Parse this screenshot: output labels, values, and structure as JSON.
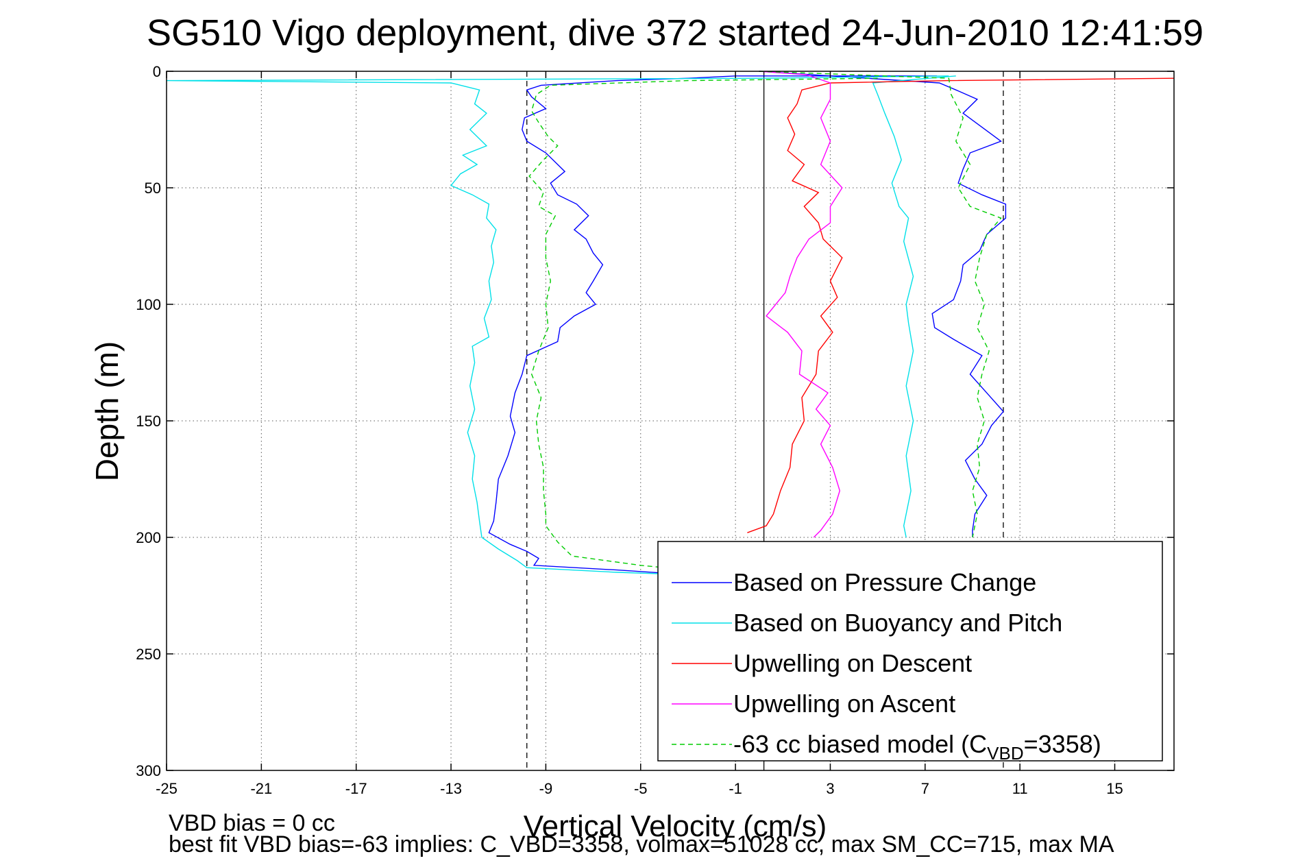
{
  "chart_data": {
    "type": "line",
    "title": "SG510 Vigo deployment, dive 372 started 24-Jun-2010 12:41:59",
    "xlabel": "Vertical Velocity (cm/s)",
    "ylabel": "Depth (m)",
    "xlim": [
      -25,
      17.5
    ],
    "ylim": [
      0,
      300
    ],
    "y_reversed": true,
    "grid": true,
    "x_ticks": [
      -25,
      -21,
      -17,
      -13,
      -9,
      -5,
      -1,
      3,
      7,
      11,
      15
    ],
    "y_ticks": [
      0,
      50,
      100,
      150,
      200,
      250,
      300
    ],
    "x_tick_labels": [
      "-25",
      "-21",
      "-17",
      "-13",
      "-9",
      "-5",
      "-1",
      "3",
      "7",
      "11",
      "15"
    ],
    "y_tick_labels": [
      "0",
      "50",
      "100",
      "150",
      "200",
      "250",
      "300"
    ],
    "legend_position": "bottom-right",
    "reference_lines": {
      "solid_x": 0.2,
      "dashed_x": [
        -9.8,
        10.3
      ]
    },
    "series": [
      {
        "name": "Based on Pressure Change",
        "color": "#0000ff",
        "style": "solid",
        "points": [
          [
            7.5,
            2
          ],
          [
            3.5,
            2
          ],
          [
            -1,
            2
          ],
          [
            -3,
            3
          ],
          [
            -6,
            4
          ],
          [
            -9.2,
            6
          ],
          [
            -9.8,
            8
          ],
          [
            -9.6,
            11
          ],
          [
            -9,
            16
          ],
          [
            -9.9,
            20
          ],
          [
            -10,
            25
          ],
          [
            -9.8,
            30
          ],
          [
            -9,
            35
          ],
          [
            -8.5,
            40
          ],
          [
            -8.2,
            43
          ],
          [
            -8.8,
            48
          ],
          [
            -8.5,
            53
          ],
          [
            -7.7,
            57
          ],
          [
            -7.2,
            62
          ],
          [
            -7.8,
            68
          ],
          [
            -7.3,
            72
          ],
          [
            -7,
            78
          ],
          [
            -6.6,
            83
          ],
          [
            -7,
            90
          ],
          [
            -7.3,
            95
          ],
          [
            -6.9,
            100
          ],
          [
            -7.8,
            105
          ],
          [
            -8.4,
            110
          ],
          [
            -8.5,
            116
          ],
          [
            -9.8,
            122
          ],
          [
            -10,
            130
          ],
          [
            -10.3,
            138
          ],
          [
            -10.5,
            148
          ],
          [
            -10.3,
            155
          ],
          [
            -10.6,
            165
          ],
          [
            -11,
            175
          ],
          [
            -11.1,
            185
          ],
          [
            -11.2,
            193
          ],
          [
            -11.4,
            198
          ],
          [
            -10.5,
            203
          ],
          [
            -9.8,
            206
          ],
          [
            -9.3,
            209
          ],
          [
            -9.5,
            212
          ],
          [
            -6,
            214
          ],
          [
            -3,
            216
          ],
          [
            -1.5,
            217
          ],
          [
            0,
            217
          ]
        ],
        "points_right": [
          [
            0,
            0
          ],
          [
            7.6,
            5
          ],
          [
            8.3,
            8
          ],
          [
            9.2,
            12
          ],
          [
            8.6,
            18
          ],
          [
            9.4,
            24
          ],
          [
            10.2,
            30
          ],
          [
            8.9,
            35
          ],
          [
            8.6,
            42
          ],
          [
            8.4,
            48
          ],
          [
            9.4,
            53
          ],
          [
            10.4,
            57
          ],
          [
            10.4,
            63
          ],
          [
            9.6,
            70
          ],
          [
            9.3,
            77
          ],
          [
            8.6,
            83
          ],
          [
            8.5,
            90
          ],
          [
            8.2,
            98
          ],
          [
            7.3,
            104
          ],
          [
            7.4,
            110
          ],
          [
            8.2,
            115
          ],
          [
            9.4,
            122
          ],
          [
            8.9,
            130
          ],
          [
            9.6,
            138
          ],
          [
            10.3,
            146
          ],
          [
            9.8,
            152
          ],
          [
            9.4,
            160
          ],
          [
            8.7,
            167
          ],
          [
            9.1,
            175
          ],
          [
            9.6,
            182
          ],
          [
            9.1,
            190
          ],
          [
            9,
            197
          ],
          [
            9,
            200
          ]
        ]
      },
      {
        "name": "Based on Buoyancy and Pitch",
        "color": "#00e0e8",
        "style": "solid",
        "points": [
          [
            8,
            2
          ],
          [
            0,
            3
          ],
          [
            -25,
            4
          ],
          [
            -13,
            5
          ],
          [
            -11.8,
            8
          ],
          [
            -12,
            14
          ],
          [
            -11.5,
            18
          ],
          [
            -12.2,
            25
          ],
          [
            -11.5,
            32
          ],
          [
            -12.5,
            36
          ],
          [
            -11.9,
            40
          ],
          [
            -12.6,
            44
          ],
          [
            -13,
            49
          ],
          [
            -12.1,
            53
          ],
          [
            -11.4,
            57
          ],
          [
            -11.5,
            63
          ],
          [
            -11.1,
            68
          ],
          [
            -11.3,
            75
          ],
          [
            -11.2,
            82
          ],
          [
            -11.4,
            90
          ],
          [
            -11.3,
            98
          ],
          [
            -11.6,
            106
          ],
          [
            -11.4,
            114
          ],
          [
            -12.1,
            118
          ],
          [
            -12,
            125
          ],
          [
            -12.2,
            135
          ],
          [
            -12,
            145
          ],
          [
            -12.3,
            155
          ],
          [
            -12,
            165
          ],
          [
            -12.1,
            175
          ],
          [
            -11.9,
            185
          ],
          [
            -11.8,
            193
          ],
          [
            -11.7,
            200
          ],
          [
            -11,
            205
          ],
          [
            -10.2,
            210
          ],
          [
            -9.8,
            213
          ],
          [
            -6,
            215
          ],
          [
            -3,
            216
          ],
          [
            0,
            217
          ]
        ],
        "points_right": [
          [
            8.3,
            2
          ],
          [
            4.8,
            5
          ],
          [
            5,
            10
          ],
          [
            5.3,
            18
          ],
          [
            5.7,
            28
          ],
          [
            6,
            38
          ],
          [
            5.6,
            48
          ],
          [
            5.9,
            58
          ],
          [
            6.3,
            63
          ],
          [
            6.1,
            73
          ],
          [
            6.5,
            88
          ],
          [
            6.2,
            100
          ],
          [
            6.3,
            108
          ],
          [
            6.5,
            120
          ],
          [
            6.2,
            135
          ],
          [
            6.5,
            150
          ],
          [
            6.2,
            165
          ],
          [
            6.4,
            180
          ],
          [
            6.1,
            195
          ],
          [
            6.2,
            200
          ]
        ]
      },
      {
        "name": "Upwelling on Descent",
        "color": "#ff0000",
        "style": "solid",
        "points": [
          [
            17.5,
            3
          ],
          [
            8,
            4
          ],
          [
            3,
            5
          ],
          [
            1.8,
            8
          ],
          [
            1.6,
            14
          ],
          [
            1.2,
            20
          ],
          [
            1.5,
            27
          ],
          [
            1.2,
            34
          ],
          [
            1.9,
            40
          ],
          [
            1.4,
            47
          ],
          [
            2.5,
            52
          ],
          [
            1.9,
            58
          ],
          [
            2.5,
            65
          ],
          [
            2.7,
            72
          ],
          [
            3.5,
            80
          ],
          [
            3,
            90
          ],
          [
            3.3,
            97
          ],
          [
            2.6,
            105
          ],
          [
            3.1,
            112
          ],
          [
            2.5,
            120
          ],
          [
            2.4,
            130
          ],
          [
            1.8,
            140
          ],
          [
            1.9,
            150
          ],
          [
            1.4,
            160
          ],
          [
            1.3,
            170
          ],
          [
            0.9,
            180
          ],
          [
            0.6,
            190
          ],
          [
            0.3,
            195
          ],
          [
            -0.5,
            198
          ]
        ]
      },
      {
        "name": "Upwelling on Ascent",
        "color": "#ff00ff",
        "style": "solid",
        "points": [
          [
            0,
            0
          ],
          [
            2,
            1.5
          ],
          [
            3,
            5
          ],
          [
            3,
            12
          ],
          [
            2.6,
            20
          ],
          [
            3,
            30
          ],
          [
            2.6,
            40
          ],
          [
            3.5,
            50
          ],
          [
            3,
            58
          ],
          [
            3,
            65
          ],
          [
            2.1,
            72
          ],
          [
            1.6,
            80
          ],
          [
            1.3,
            88
          ],
          [
            1.1,
            95
          ],
          [
            0.7,
            100
          ],
          [
            0.3,
            105
          ],
          [
            1.2,
            112
          ],
          [
            1.8,
            120
          ],
          [
            1.7,
            130
          ],
          [
            2.9,
            138
          ],
          [
            2.4,
            145
          ],
          [
            3,
            152
          ],
          [
            2.6,
            160
          ],
          [
            3.1,
            170
          ],
          [
            3.4,
            180
          ],
          [
            3.1,
            190
          ],
          [
            2.6,
            197
          ],
          [
            2.3,
            200
          ]
        ]
      },
      {
        "name": "-63 cc biased model (C_VBD=3358)",
        "legend_text": "-63 cc biased model (C",
        "legend_subscript": "VBD",
        "legend_suffix": "=3358)",
        "color": "#00cc00",
        "style": "dashed",
        "points": [
          [
            5,
            3
          ],
          [
            -3,
            4
          ],
          [
            -8.8,
            6
          ],
          [
            -9.4,
            10
          ],
          [
            -9.6,
            17
          ],
          [
            -9.3,
            22
          ],
          [
            -8.9,
            28
          ],
          [
            -8.5,
            32
          ],
          [
            -9.1,
            38
          ],
          [
            -9.7,
            45
          ],
          [
            -9.1,
            52
          ],
          [
            -9.3,
            58
          ],
          [
            -8.6,
            62
          ],
          [
            -9,
            70
          ],
          [
            -9,
            80
          ],
          [
            -8.8,
            90
          ],
          [
            -9,
            100
          ],
          [
            -8.9,
            110
          ],
          [
            -9.3,
            120
          ],
          [
            -9.6,
            130
          ],
          [
            -9.2,
            140
          ],
          [
            -9.4,
            150
          ],
          [
            -9.3,
            160
          ],
          [
            -9.1,
            170
          ],
          [
            -9.1,
            180
          ],
          [
            -9,
            190
          ],
          [
            -9,
            195
          ],
          [
            -8.5,
            202
          ],
          [
            -7.9,
            208
          ],
          [
            -5,
            212
          ],
          [
            -2,
            215
          ],
          [
            0,
            216
          ]
        ],
        "points_right": [
          [
            0,
            0
          ],
          [
            8,
            3
          ],
          [
            8.1,
            10
          ],
          [
            8.6,
            20
          ],
          [
            8.3,
            30
          ],
          [
            8.9,
            40
          ],
          [
            8.4,
            50
          ],
          [
            8.9,
            58
          ],
          [
            10.2,
            63
          ],
          [
            9.6,
            70
          ],
          [
            9.3,
            80
          ],
          [
            9.1,
            90
          ],
          [
            9.5,
            100
          ],
          [
            9.2,
            110
          ],
          [
            9.7,
            120
          ],
          [
            9.4,
            130
          ],
          [
            9.2,
            140
          ],
          [
            9.5,
            150
          ],
          [
            9.2,
            160
          ],
          [
            9.3,
            170
          ],
          [
            9,
            180
          ],
          [
            9.2,
            190
          ],
          [
            9,
            200
          ]
        ]
      }
    ],
    "annotations": [
      "VBD bias = 0 cc",
      "best fit VBD bias=-63 implies: C_VBD=3358, volmax=51028 cc, max SM_CC=715, max MA"
    ]
  }
}
